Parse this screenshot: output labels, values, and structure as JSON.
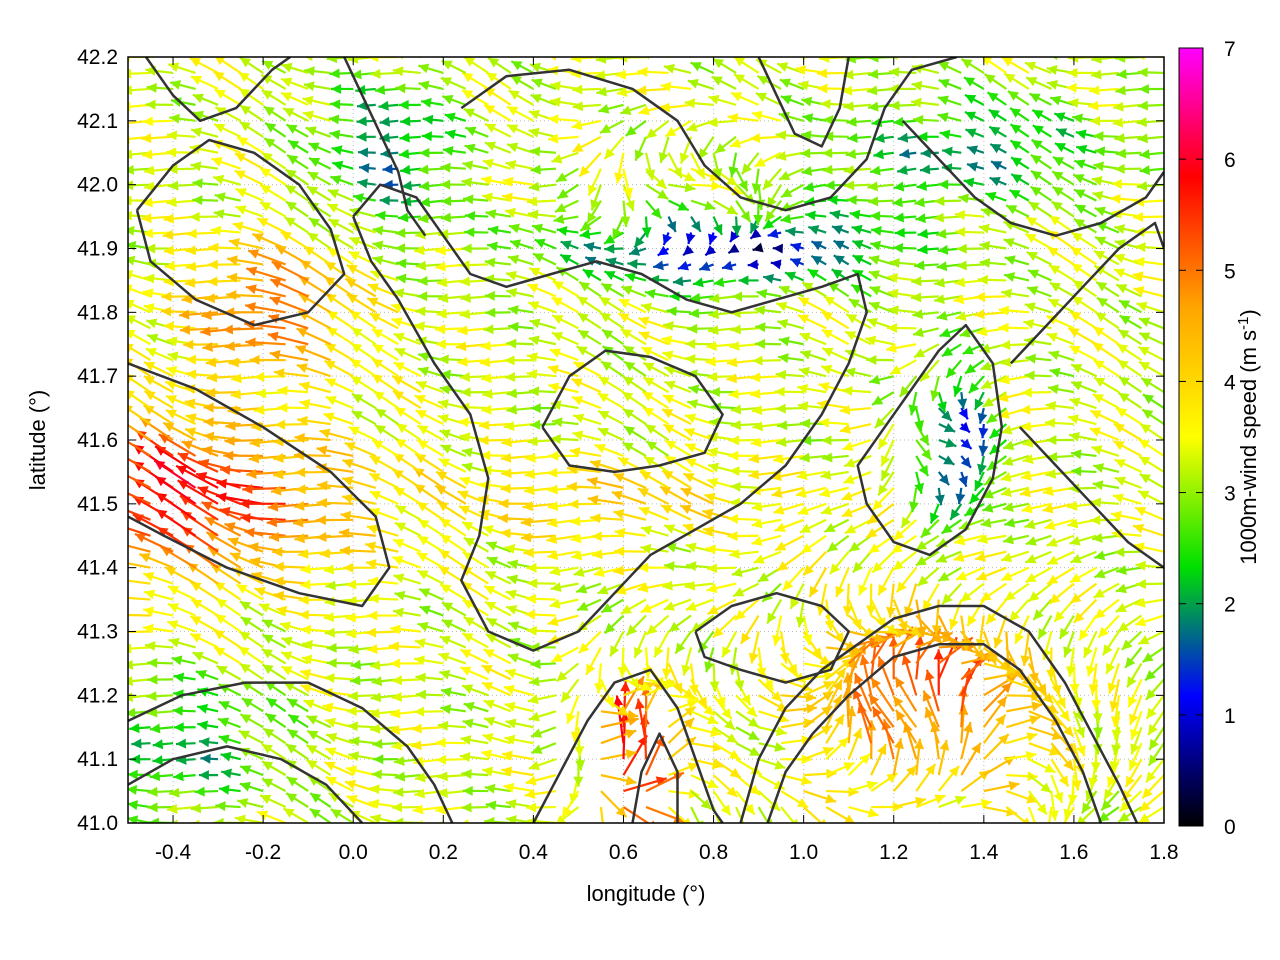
{
  "chart_data": {
    "type": "vector-field",
    "xlabel": "longitude (°)",
    "ylabel": "latitude (°)",
    "xlim": [
      -0.5,
      1.8
    ],
    "ylim": [
      41.0,
      42.2
    ],
    "xticks": [
      {
        "value": -0.4,
        "label": "-0.4"
      },
      {
        "value": -0.2,
        "label": "-0.2"
      },
      {
        "value": 0.0,
        "label": "0.0"
      },
      {
        "value": 0.2,
        "label": "0.2"
      },
      {
        "value": 0.4,
        "label": "0.4"
      },
      {
        "value": 0.6,
        "label": "0.6"
      },
      {
        "value": 0.8,
        "label": "0.8"
      },
      {
        "value": 1.0,
        "label": "1.0"
      },
      {
        "value": 1.2,
        "label": "1.2"
      },
      {
        "value": 1.4,
        "label": "1.4"
      },
      {
        "value": 1.6,
        "label": "1.6"
      },
      {
        "value": 1.8,
        "label": "1.8"
      }
    ],
    "yticks": [
      {
        "value": 41.0,
        "label": "41.0"
      },
      {
        "value": 41.1,
        "label": "41.1"
      },
      {
        "value": 41.2,
        "label": "41.2"
      },
      {
        "value": 41.3,
        "label": "41.3"
      },
      {
        "value": 41.4,
        "label": "41.4"
      },
      {
        "value": 41.5,
        "label": "41.5"
      },
      {
        "value": 41.6,
        "label": "41.6"
      },
      {
        "value": 41.7,
        "label": "41.7"
      },
      {
        "value": 41.8,
        "label": "41.8"
      },
      {
        "value": 41.9,
        "label": "41.9"
      },
      {
        "value": 42.0,
        "label": "42.0"
      },
      {
        "value": 42.1,
        "label": "42.1"
      },
      {
        "value": 42.2,
        "label": "42.2"
      }
    ],
    "grid": true,
    "colorbar": {
      "label": "1000m-wind speed",
      "unit_prefix": "(m s",
      "unit_exp": "-1",
      "unit_suffix": ")",
      "range": [
        0,
        7
      ],
      "ticks": [
        {
          "value": 0,
          "label": "0"
        },
        {
          "value": 1,
          "label": "1"
        },
        {
          "value": 2,
          "label": "2"
        },
        {
          "value": 3,
          "label": "3"
        },
        {
          "value": 4,
          "label": "4"
        },
        {
          "value": 5,
          "label": "5"
        },
        {
          "value": 6,
          "label": "6"
        },
        {
          "value": 7,
          "label": "7"
        }
      ],
      "palette": [
        "#000000",
        "#0000ff",
        "#00e000",
        "#ffff00",
        "#ffa500",
        "#ff0000",
        "#ff00ff"
      ]
    },
    "contour_color": "#333333",
    "contours": [
      [
        [
          -0.48,
          41.96
        ],
        [
          -0.4,
          42.03
        ],
        [
          -0.32,
          42.07
        ],
        [
          -0.22,
          42.05
        ],
        [
          -0.12,
          42.0
        ],
        [
          -0.05,
          41.93
        ],
        [
          -0.02,
          41.86
        ],
        [
          -0.1,
          41.8
        ],
        [
          -0.22,
          41.78
        ],
        [
          -0.35,
          41.82
        ],
        [
          -0.45,
          41.88
        ],
        [
          -0.48,
          41.96
        ]
      ],
      [
        [
          -0.5,
          41.72
        ],
        [
          -0.35,
          41.68
        ],
        [
          -0.2,
          41.62
        ],
        [
          -0.05,
          41.55
        ],
        [
          0.05,
          41.48
        ],
        [
          0.08,
          41.4
        ],
        [
          0.02,
          41.34
        ],
        [
          -0.12,
          41.36
        ],
        [
          -0.28,
          41.4
        ],
        [
          -0.42,
          41.45
        ],
        [
          -0.5,
          41.48
        ]
      ],
      [
        [
          0.0,
          41.95
        ],
        [
          0.04,
          41.88
        ],
        [
          0.1,
          41.82
        ],
        [
          0.18,
          41.72
        ],
        [
          0.26,
          41.64
        ],
        [
          0.3,
          41.54
        ],
        [
          0.28,
          41.45
        ],
        [
          0.24,
          41.38
        ],
        [
          0.3,
          41.3
        ],
        [
          0.4,
          41.27
        ],
        [
          0.5,
          41.3
        ],
        [
          0.58,
          41.36
        ],
        [
          0.66,
          41.42
        ],
        [
          0.76,
          41.46
        ],
        [
          0.86,
          41.5
        ],
        [
          0.96,
          41.56
        ],
        [
          1.04,
          41.64
        ],
        [
          1.1,
          41.72
        ],
        [
          1.14,
          41.8
        ],
        [
          1.12,
          41.86
        ],
        [
          1.04,
          41.84
        ],
        [
          0.94,
          41.82
        ],
        [
          0.84,
          41.8
        ],
        [
          0.74,
          41.82
        ],
        [
          0.64,
          41.86
        ],
        [
          0.54,
          41.88
        ],
        [
          0.44,
          41.86
        ],
        [
          0.34,
          41.84
        ],
        [
          0.26,
          41.86
        ],
        [
          0.2,
          41.92
        ],
        [
          0.14,
          41.98
        ],
        [
          0.06,
          42.0
        ],
        [
          0.0,
          41.95
        ]
      ],
      [
        [
          0.42,
          41.62
        ],
        [
          0.48,
          41.7
        ],
        [
          0.56,
          41.74
        ],
        [
          0.66,
          41.73
        ],
        [
          0.76,
          41.7
        ],
        [
          0.82,
          41.64
        ],
        [
          0.78,
          41.58
        ],
        [
          0.68,
          41.56
        ],
        [
          0.58,
          41.55
        ],
        [
          0.48,
          41.56
        ],
        [
          0.42,
          41.62
        ]
      ],
      [
        [
          0.24,
          42.12
        ],
        [
          0.34,
          42.17
        ],
        [
          0.48,
          42.18
        ],
        [
          0.62,
          42.15
        ],
        [
          0.72,
          42.1
        ],
        [
          0.78,
          42.03
        ],
        [
          0.86,
          41.98
        ],
        [
          0.96,
          41.96
        ],
        [
          1.06,
          41.98
        ],
        [
          1.14,
          42.04
        ],
        [
          1.18,
          42.12
        ],
        [
          1.24,
          42.18
        ],
        [
          1.34,
          42.2
        ]
      ],
      [
        [
          1.22,
          42.1
        ],
        [
          1.3,
          42.04
        ],
        [
          1.38,
          41.98
        ],
        [
          1.46,
          41.94
        ],
        [
          1.56,
          41.92
        ],
        [
          1.66,
          41.94
        ],
        [
          1.76,
          41.98
        ],
        [
          1.8,
          42.02
        ]
      ],
      [
        [
          1.18,
          41.62
        ],
        [
          1.24,
          41.68
        ],
        [
          1.3,
          41.74
        ],
        [
          1.36,
          41.78
        ],
        [
          1.42,
          41.72
        ],
        [
          1.44,
          41.62
        ],
        [
          1.42,
          41.54
        ],
        [
          1.36,
          41.46
        ],
        [
          1.28,
          41.42
        ],
        [
          1.2,
          41.44
        ],
        [
          1.14,
          41.5
        ],
        [
          1.12,
          41.56
        ],
        [
          1.18,
          41.62
        ]
      ],
      [
        [
          1.46,
          41.72
        ],
        [
          1.54,
          41.78
        ],
        [
          1.62,
          41.84
        ],
        [
          1.7,
          41.9
        ],
        [
          1.78,
          41.94
        ],
        [
          1.8,
          41.9
        ]
      ],
      [
        [
          1.48,
          41.62
        ],
        [
          1.56,
          41.56
        ],
        [
          1.64,
          41.5
        ],
        [
          1.72,
          41.44
        ],
        [
          1.8,
          41.4
        ]
      ],
      [
        [
          0.4,
          41.0
        ],
        [
          0.46,
          41.08
        ],
        [
          0.52,
          41.16
        ],
        [
          0.58,
          41.22
        ],
        [
          0.66,
          41.24
        ],
        [
          0.72,
          41.18
        ],
        [
          0.76,
          41.1
        ],
        [
          0.8,
          41.02
        ],
        [
          0.82,
          41.0
        ]
      ],
      [
        [
          0.62,
          41.0
        ],
        [
          0.64,
          41.08
        ],
        [
          0.68,
          41.14
        ],
        [
          0.72,
          41.08
        ],
        [
          0.72,
          41.0
        ]
      ],
      [
        [
          0.86,
          41.0
        ],
        [
          0.9,
          41.1
        ],
        [
          0.96,
          41.18
        ],
        [
          1.04,
          41.24
        ],
        [
          1.12,
          41.28
        ],
        [
          1.2,
          41.32
        ],
        [
          1.3,
          41.34
        ],
        [
          1.4,
          41.34
        ],
        [
          1.5,
          41.3
        ],
        [
          1.58,
          41.22
        ],
        [
          1.64,
          41.14
        ],
        [
          1.7,
          41.06
        ],
        [
          1.74,
          41.0
        ]
      ],
      [
        [
          0.92,
          41.0
        ],
        [
          0.96,
          41.08
        ],
        [
          1.02,
          41.14
        ],
        [
          1.1,
          41.2
        ],
        [
          1.2,
          41.26
        ],
        [
          1.3,
          41.28
        ],
        [
          1.4,
          41.28
        ],
        [
          1.48,
          41.24
        ],
        [
          1.56,
          41.16
        ],
        [
          1.62,
          41.08
        ],
        [
          1.66,
          41.0
        ]
      ],
      [
        [
          0.76,
          41.3
        ],
        [
          0.84,
          41.34
        ],
        [
          0.94,
          41.36
        ],
        [
          1.04,
          41.34
        ],
        [
          1.1,
          41.3
        ],
        [
          1.06,
          41.24
        ],
        [
          0.96,
          41.22
        ],
        [
          0.86,
          41.24
        ],
        [
          0.78,
          41.26
        ],
        [
          0.76,
          41.3
        ]
      ],
      [
        [
          -0.5,
          41.16
        ],
        [
          -0.38,
          41.2
        ],
        [
          -0.24,
          41.22
        ],
        [
          -0.1,
          41.22
        ],
        [
          0.02,
          41.18
        ],
        [
          0.12,
          41.12
        ],
        [
          0.18,
          41.06
        ],
        [
          0.22,
          41.0
        ]
      ],
      [
        [
          -0.5,
          41.06
        ],
        [
          -0.4,
          41.1
        ],
        [
          -0.28,
          41.12
        ],
        [
          -0.16,
          41.1
        ],
        [
          -0.06,
          41.06
        ],
        [
          0.02,
          41.0
        ]
      ],
      [
        [
          -0.46,
          42.2
        ],
        [
          -0.4,
          42.14
        ],
        [
          -0.34,
          42.1
        ],
        [
          -0.26,
          42.12
        ],
        [
          -0.18,
          42.18
        ],
        [
          -0.14,
          42.2
        ]
      ],
      [
        [
          -0.02,
          42.2
        ],
        [
          0.02,
          42.14
        ],
        [
          0.06,
          42.08
        ],
        [
          0.1,
          42.02
        ],
        [
          0.12,
          41.96
        ],
        [
          0.16,
          41.92
        ]
      ],
      [
        [
          0.9,
          42.2
        ],
        [
          0.94,
          42.14
        ],
        [
          0.98,
          42.08
        ],
        [
          1.04,
          42.06
        ],
        [
          1.08,
          42.12
        ],
        [
          1.1,
          42.2
        ]
      ]
    ]
  }
}
